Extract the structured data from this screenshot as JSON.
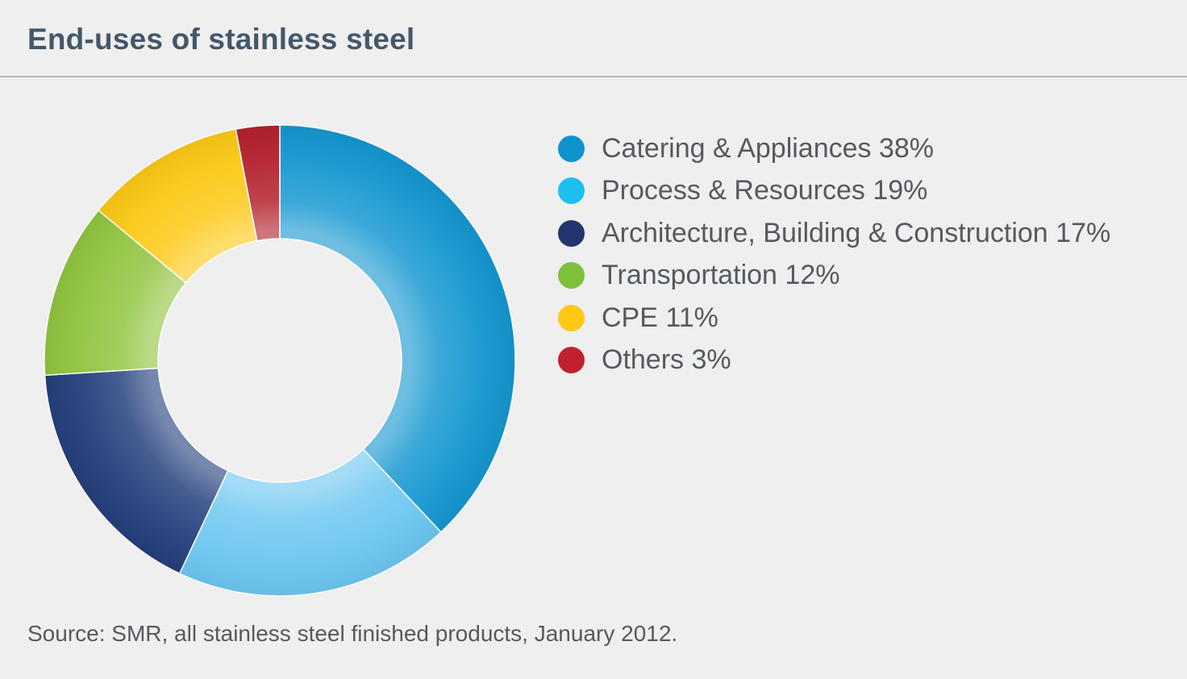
{
  "title": "End-uses of stainless steel",
  "source": "Source: SMR, all stainless steel finished products, January 2012.",
  "chart_data": {
    "type": "pie",
    "donut": true,
    "title": "End-uses of stainless steel",
    "legend_position": "right",
    "slices": [
      {
        "label": "Catering & Appliances",
        "value": 38,
        "legend": "Catering & Appliances 38%",
        "color": "#1597d0",
        "legend_color": "#0e93cc"
      },
      {
        "label": "Process & Resources",
        "value": 19,
        "legend": "Process & Resources 19%",
        "color": "#6cc6f0",
        "legend_color": "#1dbff0"
      },
      {
        "label": "Architecture, Building & Construction",
        "value": 17,
        "legend": "Architecture, Building & Construction 17%",
        "color": "#243f7c",
        "legend_color": "#22356e"
      },
      {
        "label": "Transportation",
        "value": 12,
        "legend": "Transportation 12%",
        "color": "#90c43e",
        "legend_color": "#7dc13b"
      },
      {
        "label": "CPE",
        "value": 11,
        "legend": "CPE 11%",
        "color": "#fcc814",
        "legend_color": "#fdc914"
      },
      {
        "label": "Others",
        "value": 3,
        "legend": "Others 3%",
        "color": "#b3202c",
        "legend_color": "#c1202e"
      }
    ]
  }
}
